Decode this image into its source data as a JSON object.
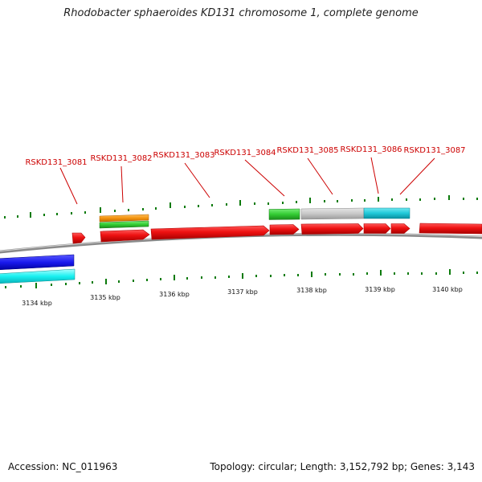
{
  "title": "Rhodobacter sphaeroides KD131 chromosome 1, complete genome",
  "colors": {
    "backbone": "#8a8a8a",
    "cds": "#ee1111",
    "gene_label": "#cc0000",
    "tick": "#0b7a0b",
    "ring_blue": "#1a1aee",
    "ring_cyan": "#18f0f0",
    "ring_orange": "#f3940f",
    "ring_green": "#33cc33",
    "ring_gray": "#c8c8c8",
    "ring_teal": "#20c8d8"
  },
  "gene_labels": [
    "RSKD131_3081",
    "RSKD131_3082",
    "RSKD131_3083",
    "RSKD131_3084",
    "RSKD131_3085",
    "RSKD131_3086",
    "RSKD131_3087"
  ],
  "kbp_labels": [
    "3134 kbp",
    "3135 kbp",
    "3136 kbp",
    "3137 kbp",
    "3138 kbp",
    "3139 kbp",
    "3140 kbp"
  ],
  "footer": {
    "accession": "Accession: NC_011963",
    "summary": "Topology: circular; Length: 3,152,792 bp; Genes: 3,143"
  }
}
